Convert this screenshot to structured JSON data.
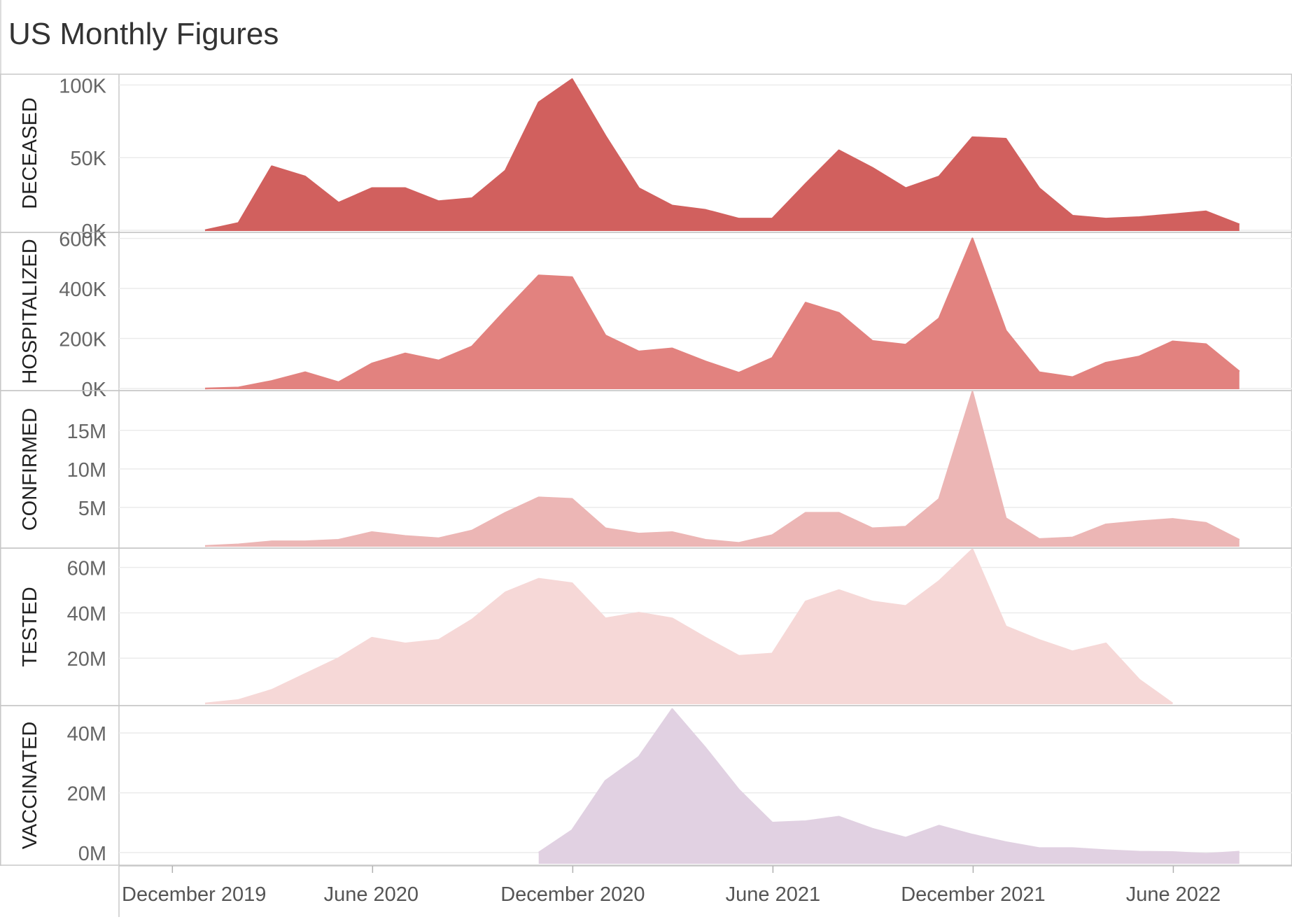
{
  "title": "US Monthly Figures",
  "chart_data": {
    "type": "area",
    "x": [
      "2020-01",
      "2020-02",
      "2020-03",
      "2020-04",
      "2020-05",
      "2020-06",
      "2020-07",
      "2020-08",
      "2020-09",
      "2020-10",
      "2020-11",
      "2020-12",
      "2021-01",
      "2021-02",
      "2021-03",
      "2021-04",
      "2021-05",
      "2021-06",
      "2021-07",
      "2021-08",
      "2021-09",
      "2021-10",
      "2021-11",
      "2021-12",
      "2022-01",
      "2022-02",
      "2022-03",
      "2022-04",
      "2022-05",
      "2022-06",
      "2022-07",
      "2022-08",
      "2022-09"
    ],
    "x_ticks": [
      {
        "x": "2019-12",
        "label": "December 2019"
      },
      {
        "x": "2020-06",
        "label": "June 2020"
      },
      {
        "x": "2020-12",
        "label": "December 2020"
      },
      {
        "x": "2021-06",
        "label": "June 2021"
      },
      {
        "x": "2021-12",
        "label": "December 2021"
      },
      {
        "x": "2022-06",
        "label": "June 2022"
      }
    ],
    "panels": [
      {
        "name": "DECEASED",
        "color": "#d1605e",
        "ylim": [
          0,
          105000
        ],
        "ticks": [
          {
            "v": 0,
            "label": "0K"
          },
          {
            "v": 50000,
            "label": "50K"
          },
          {
            "v": 100000,
            "label": "100K"
          }
        ],
        "values": [
          0,
          5000,
          44000,
          37000,
          19000,
          29000,
          29000,
          20000,
          22000,
          41000,
          88000,
          104000,
          65000,
          29000,
          17000,
          14000,
          8000,
          8000,
          32000,
          55000,
          43000,
          29000,
          37000,
          64000,
          63000,
          29000,
          10000,
          8000,
          9000,
          11000,
          13000,
          4000,
          null
        ]
      },
      {
        "name": "HOSPITALIZED",
        "color": "#e2827f",
        "ylim": [
          0,
          610000
        ],
        "ticks": [
          {
            "v": 0,
            "label": "0K"
          },
          {
            "v": 200000,
            "label": "200K"
          },
          {
            "v": 400000,
            "label": "400K"
          },
          {
            "v": 600000,
            "label": "600K"
          }
        ],
        "values": [
          0,
          4000,
          30000,
          65000,
          25000,
          100000,
          140000,
          112000,
          168000,
          312000,
          452000,
          445000,
          212000,
          148000,
          160000,
          108000,
          63000,
          122000,
          343000,
          302000,
          190000,
          175000,
          280000,
          600000,
          232000,
          65000,
          45000,
          103000,
          128000,
          188000,
          177000,
          68000,
          null
        ]
      },
      {
        "name": "CONFIRMED",
        "color": "#ecb6b5",
        "ylim": [
          0,
          19700000
        ],
        "ticks": [
          {
            "v": 5000000,
            "label": "5M"
          },
          {
            "v": 10000000,
            "label": "10M"
          },
          {
            "v": 15000000,
            "label": "15M"
          }
        ],
        "values": [
          0,
          200000,
          600000,
          600000,
          800000,
          1800000,
          1300000,
          1000000,
          2000000,
          4300000,
          6300000,
          6100000,
          2300000,
          1600000,
          1800000,
          800000,
          400000,
          1400000,
          4300000,
          4300000,
          2300000,
          2500000,
          6100000,
          20000000,
          3600000,
          900000,
          1100000,
          2800000,
          3200000,
          3500000,
          3000000,
          800000,
          null
        ]
      },
      {
        "name": "TESTED",
        "color": "#f6d8d7",
        "ylim": [
          0,
          67000000
        ],
        "ticks": [
          {
            "v": 20000000,
            "label": "20M"
          },
          {
            "v": 40000000,
            "label": "40M"
          },
          {
            "v": 60000000,
            "label": "60M"
          }
        ],
        "values": [
          0,
          1500000,
          6000000,
          13000000,
          20000000,
          29000000,
          26500000,
          28000000,
          37000000,
          49000000,
          55000000,
          53000000,
          37500000,
          40000000,
          37500000,
          29000000,
          21000000,
          22000000,
          45000000,
          50000000,
          45000000,
          43000000,
          54000000,
          68000000,
          34000000,
          28000000,
          23000000,
          26500000,
          10500000,
          0,
          null,
          null,
          null
        ]
      },
      {
        "name": "VACCINATED",
        "color": "#e1d1e2",
        "ylim": [
          -3500000,
          48000000
        ],
        "ticks": [
          {
            "v": 0,
            "label": "0M"
          },
          {
            "v": 20000000,
            "label": "20M"
          },
          {
            "v": 40000000,
            "label": "40M"
          }
        ],
        "values": [
          null,
          null,
          null,
          null,
          null,
          null,
          null,
          null,
          null,
          null,
          0,
          7500000,
          24000000,
          32000000,
          48000000,
          35000000,
          21000000,
          10000000,
          10500000,
          12000000,
          8000000,
          5000000,
          9000000,
          6000000,
          3500000,
          1500000,
          1500000,
          800000,
          300000,
          200000,
          -400000,
          300000,
          null
        ]
      }
    ]
  }
}
